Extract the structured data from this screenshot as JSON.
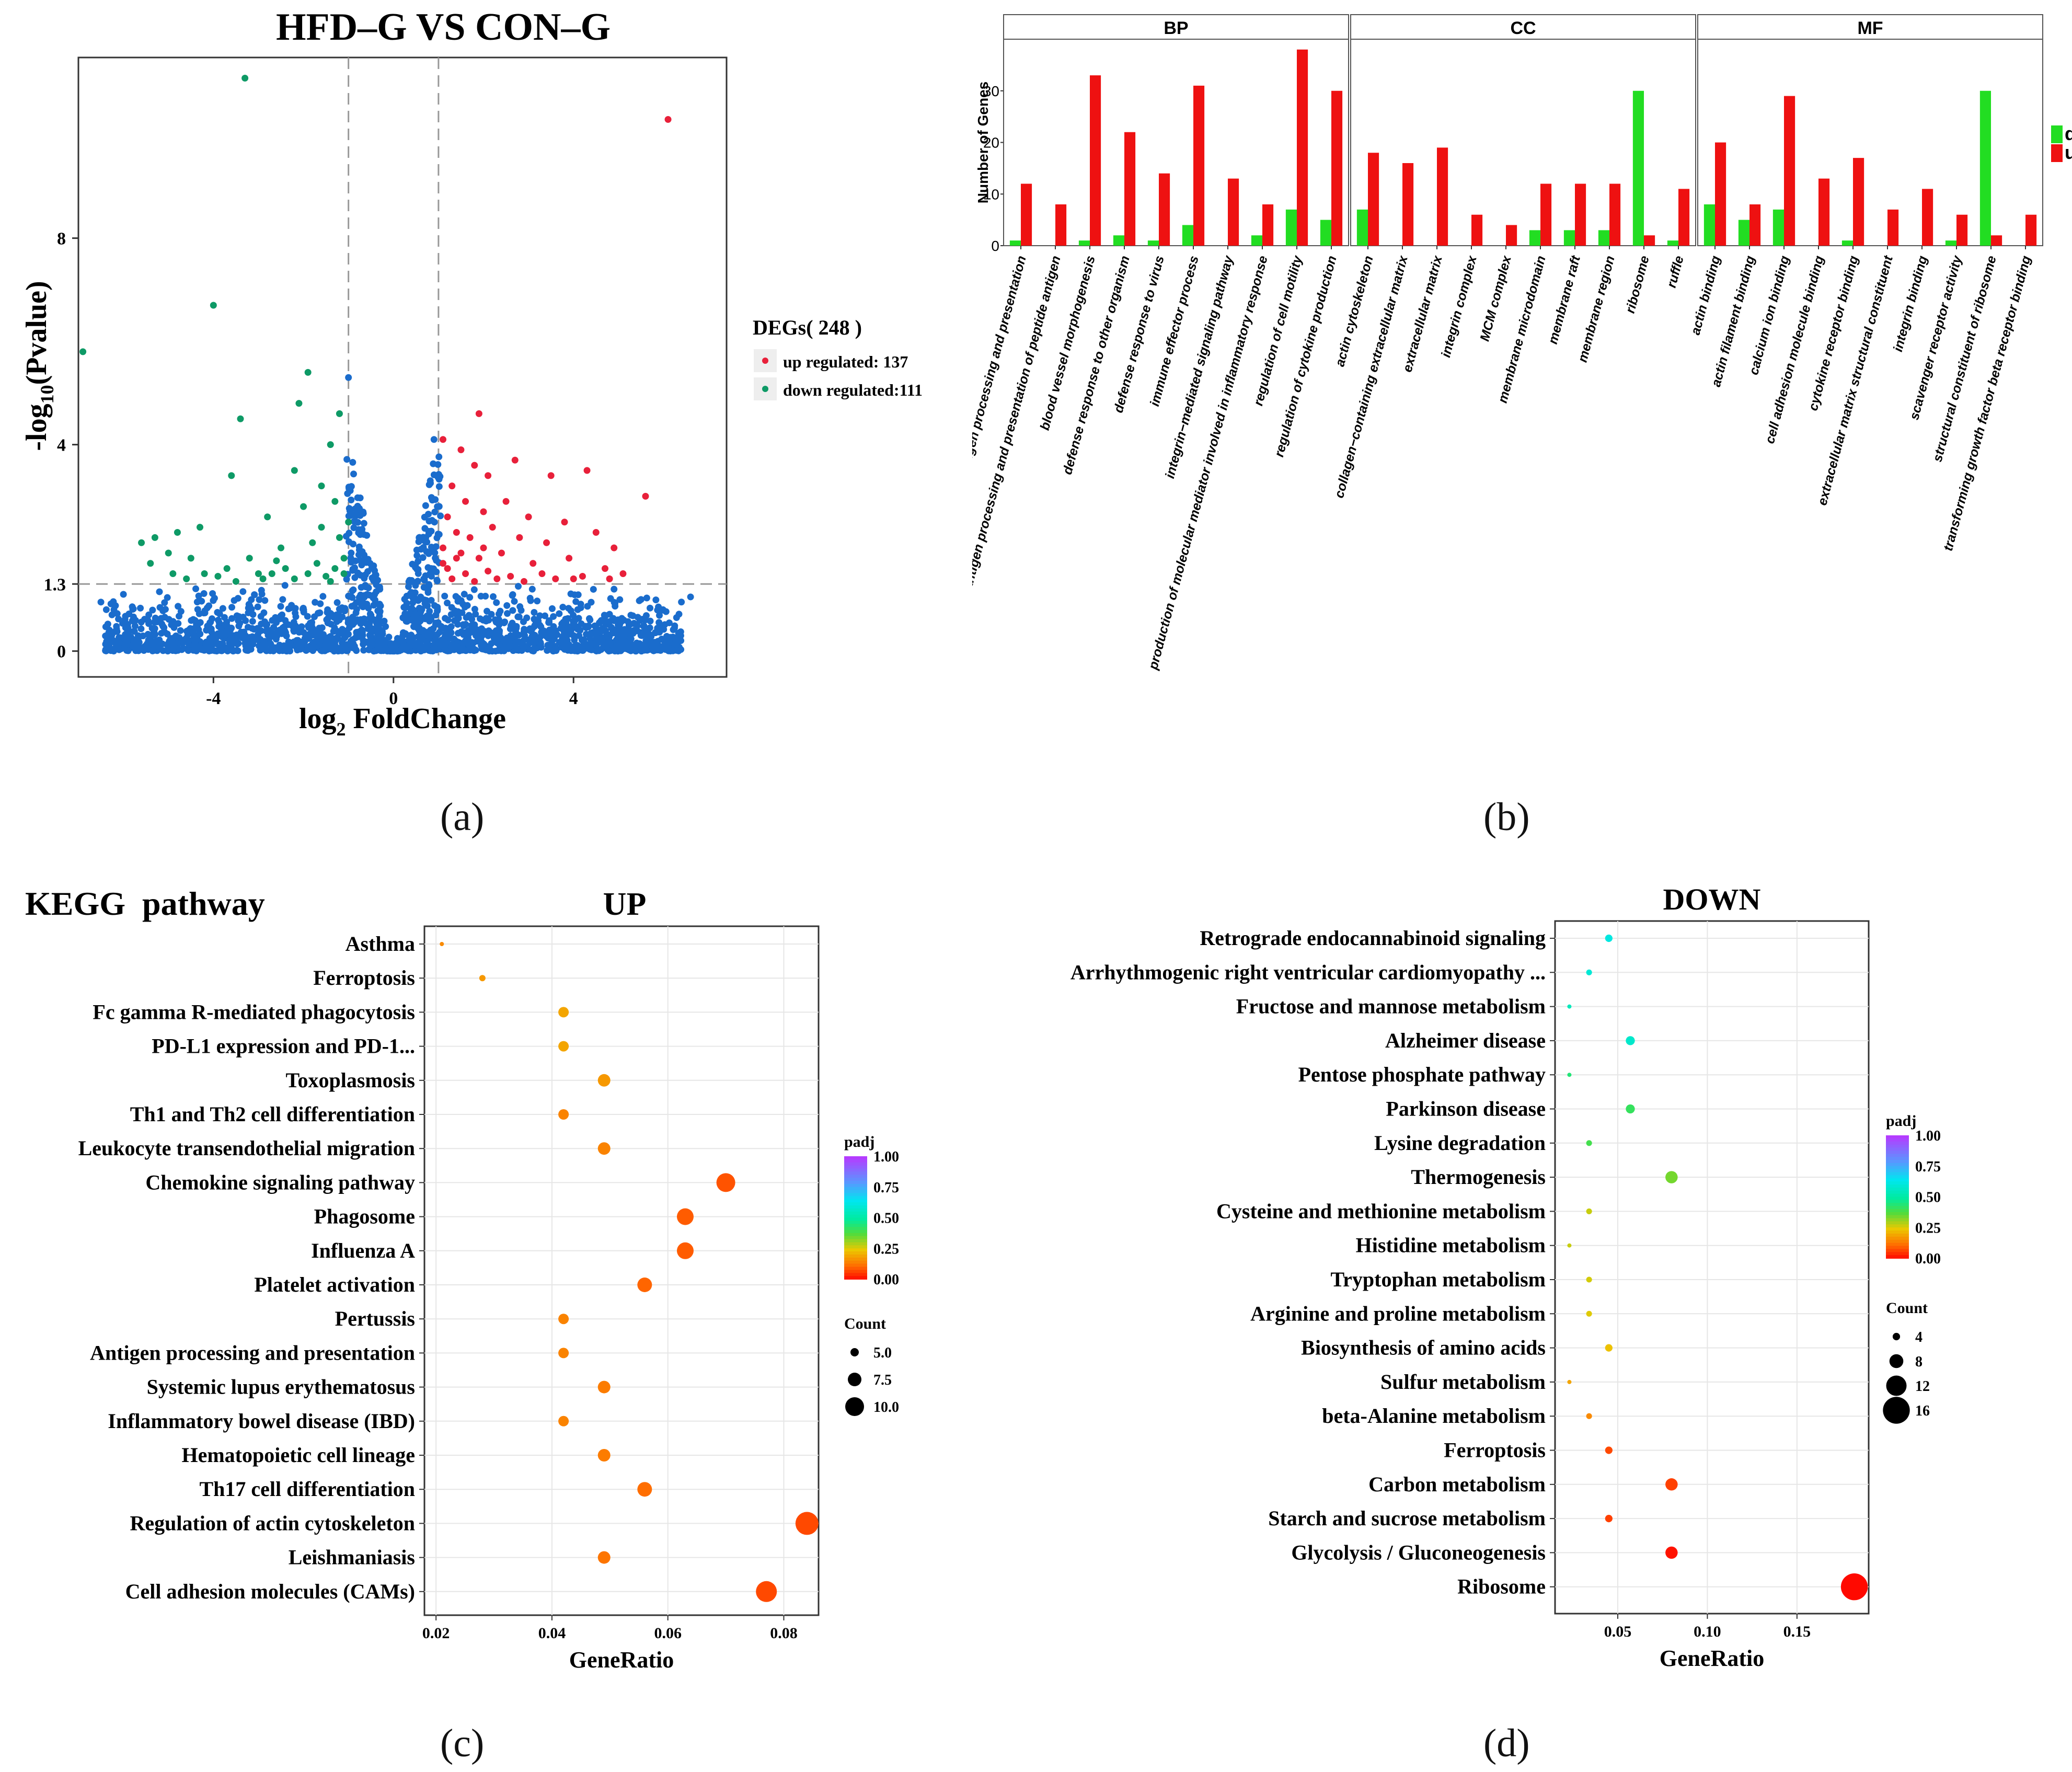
{
  "panel_labels": {
    "a": "(a)",
    "b": "(b)",
    "c": "(c)",
    "d": "(d)"
  },
  "chart_data": [
    {
      "type": "scatter",
      "id": "volcano",
      "title": "HFD–G VS CON–G",
      "xlabel": "log2 FoldChange",
      "xlabel_main": "log",
      "xlabel_sub": "2",
      "xlabel_rest": " FoldChange",
      "ylabel_main": "-log",
      "ylabel_sub": "10",
      "ylabel_rest": "(Pvalue)",
      "xlim": [
        -7,
        7.4
      ],
      "ylim": [
        -0.5,
        11.5
      ],
      "xticks": [
        "-4",
        "0",
        "4"
      ],
      "yticks": [
        "0",
        "1.3",
        "4",
        "8"
      ],
      "thresholds": {
        "x": [
          -1,
          1
        ],
        "y": 1.3
      },
      "legend": {
        "title": "DEGs( 248 )",
        "up": "up regulated: 137",
        "down": "down regulated:111",
        "position": "right"
      },
      "colors": {
        "up": "#e8203a",
        "down": "#0e9a66",
        "ns": "#1a6ccc"
      },
      "up_points": [
        [
          6.1,
          10.3
        ],
        [
          1.1,
          4.1
        ],
        [
          1.5,
          3.9
        ],
        [
          1.8,
          3.6
        ],
        [
          2.1,
          3.4
        ],
        [
          2.7,
          3.7
        ],
        [
          3.5,
          3.4
        ],
        [
          4.3,
          3.5
        ],
        [
          5.6,
          3.0
        ],
        [
          1.3,
          3.2
        ],
        [
          1.6,
          2.9
        ],
        [
          2.0,
          2.7
        ],
        [
          2.5,
          2.9
        ],
        [
          3.0,
          2.6
        ],
        [
          3.8,
          2.5
        ],
        [
          1.2,
          2.6
        ],
        [
          1.4,
          2.3
        ],
        [
          1.7,
          2.2
        ],
        [
          2.2,
          2.4
        ],
        [
          2.8,
          2.2
        ],
        [
          3.4,
          2.1
        ],
        [
          4.5,
          2.3
        ],
        [
          4.9,
          2.0
        ],
        [
          1.1,
          2.0
        ],
        [
          1.5,
          1.9
        ],
        [
          1.9,
          1.8
        ],
        [
          2.4,
          1.9
        ],
        [
          3.1,
          1.7
        ],
        [
          3.9,
          1.8
        ],
        [
          4.7,
          1.6
        ],
        [
          1.2,
          1.6
        ],
        [
          1.6,
          1.5
        ],
        [
          2.1,
          1.55
        ],
        [
          2.6,
          1.45
        ],
        [
          3.3,
          1.5
        ],
        [
          4.2,
          1.45
        ],
        [
          5.1,
          1.5
        ],
        [
          1.3,
          1.4
        ],
        [
          1.8,
          1.35
        ],
        [
          2.3,
          1.4
        ],
        [
          2.9,
          1.35
        ],
        [
          1.1,
          1.7
        ],
        [
          1.4,
          1.8
        ],
        [
          2.0,
          2.0
        ],
        [
          1.9,
          4.6
        ],
        [
          3.6,
          1.4
        ],
        [
          4.0,
          1.4
        ],
        [
          4.8,
          1.4
        ]
      ],
      "down_points": [
        [
          -4.0,
          6.7
        ],
        [
          -6.9,
          5.8
        ],
        [
          -3.3,
          11.1
        ],
        [
          -1.9,
          5.4
        ],
        [
          -2.1,
          4.8
        ],
        [
          -1.2,
          4.6
        ],
        [
          -3.4,
          4.5
        ],
        [
          -1.4,
          4.0
        ],
        [
          -3.6,
          3.4
        ],
        [
          -2.2,
          3.5
        ],
        [
          -1.6,
          3.2
        ],
        [
          -4.8,
          2.3
        ],
        [
          -5.3,
          2.2
        ],
        [
          -4.3,
          2.4
        ],
        [
          -2.8,
          2.6
        ],
        [
          -2.0,
          2.8
        ],
        [
          -1.3,
          2.9
        ],
        [
          -5.6,
          2.1
        ],
        [
          -5.0,
          1.9
        ],
        [
          -4.5,
          1.8
        ],
        [
          -3.2,
          1.8
        ],
        [
          -2.5,
          2.0
        ],
        [
          -1.8,
          2.1
        ],
        [
          -1.2,
          2.2
        ],
        [
          -4.9,
          1.5
        ],
        [
          -4.2,
          1.5
        ],
        [
          -3.7,
          1.6
        ],
        [
          -3.0,
          1.5
        ],
        [
          -2.4,
          1.6
        ],
        [
          -1.7,
          1.7
        ],
        [
          -1.1,
          1.8
        ],
        [
          -2.9,
          1.4
        ],
        [
          -2.2,
          1.4
        ],
        [
          -1.5,
          1.45
        ],
        [
          -4.6,
          1.4
        ],
        [
          -3.5,
          1.35
        ],
        [
          -1.9,
          1.5
        ],
        [
          -1.3,
          1.6
        ],
        [
          -2.6,
          1.75
        ],
        [
          -1.6,
          2.4
        ],
        [
          -1.1,
          1.5
        ],
        [
          -1.4,
          1.35
        ],
        [
          -2.7,
          1.5
        ],
        [
          -3.9,
          1.45
        ],
        [
          -5.4,
          1.7
        ],
        [
          -1.0,
          2.5
        ]
      ],
      "ns_extra_points": [
        [
          -6.5,
          0.95
        ],
        [
          6.6,
          1.05
        ],
        [
          -1.0,
          5.3
        ],
        [
          0.9,
          4.1
        ],
        [
          -6.0,
          1.1
        ],
        [
          4.9,
          1.2
        ],
        [
          -5.2,
          1.15
        ],
        [
          5.5,
          1.0
        ]
      ]
    },
    {
      "type": "bar",
      "id": "go",
      "ylabel": "Number of Genes",
      "ylim": [
        0,
        40
      ],
      "yticks": [
        "0",
        "10",
        "20",
        "30"
      ],
      "legend": {
        "down": "down",
        "up": "up",
        "position": "right"
      },
      "colors": {
        "down": "#22dd22",
        "up": "#ee1111"
      },
      "facets": [
        {
          "name": "BP",
          "categories": [
            "antigen processing and presentation",
            "antigen processing and presentation of peptide antigen",
            "blood vessel morphogenesis",
            "defense response to other organism",
            "defense response to virus",
            "immune effector process",
            "integrin−mediated signaling pathway",
            "production of molecular mediator involved in inflammatory response",
            "regulation of cell motility",
            "regulation of cytokine production"
          ],
          "down": [
            1,
            0,
            1,
            2,
            1,
            4,
            0,
            2,
            7,
            5
          ],
          "up": [
            12,
            8,
            33,
            22,
            14,
            31,
            13,
            8,
            38,
            30
          ]
        },
        {
          "name": "CC",
          "categories": [
            "actin cytoskeleton",
            "collagen−containing extracellular matrix",
            "extracellular matrix",
            "integrin complex",
            "MCM complex",
            "membrane microdomain",
            "membrane raft",
            "membrane region",
            "ribosome",
            "ruffle"
          ],
          "down": [
            7,
            0,
            0,
            0,
            0,
            3,
            3,
            3,
            30,
            1
          ],
          "up": [
            18,
            16,
            19,
            6,
            4,
            12,
            12,
            12,
            2,
            11
          ]
        },
        {
          "name": "MF",
          "categories": [
            "actin binding",
            "actin filament binding",
            "calcium ion binding",
            "cell adhesion molecule binding",
            "cytokine receptor binding",
            "extracellular matrix structural constituent",
            "integrin binding",
            "scavenger receptor activity",
            "structural constituent of ribosome",
            "transforming growth factor beta receptor binding"
          ],
          "down": [
            8,
            5,
            7,
            0,
            1,
            0,
            0,
            1,
            30,
            0
          ],
          "up": [
            20,
            8,
            29,
            13,
            17,
            7,
            11,
            6,
            2,
            6
          ]
        }
      ]
    },
    {
      "type": "scatter",
      "id": "kegg_up",
      "heading": "KEGG  pathway",
      "title": "UP",
      "xlabel": "GeneRatio",
      "xlim": [
        0.018,
        0.086
      ],
      "xticks": [
        0.02,
        0.04,
        0.06,
        0.08
      ],
      "xtick_labels": [
        "0.02",
        "0.04",
        "0.06",
        "0.08"
      ],
      "pathways": [
        "Asthma",
        "Ferroptosis",
        "Fc gamma R-mediated phagocytosis",
        "PD-L1 expression and PD-1...",
        "Toxoplasmosis",
        "Th1 and Th2 cell differentiation",
        "Leukocyte transendothelial migration",
        "Chemokine signaling pathway",
        "Phagosome",
        "Influenza A",
        "Platelet activation",
        "Pertussis",
        "Antigen processing and presentation",
        "Systemic lupus erythematosus",
        "Inflammatory bowel disease (IBD)",
        "Hematopoietic cell lineage",
        "Th17 cell differentiation",
        "Regulation of actin cytoskeleton",
        "Leishmaniasis",
        "Cell adhesion molecules (CAMs)"
      ],
      "gene_ratio": [
        0.021,
        0.028,
        0.042,
        0.042,
        0.049,
        0.042,
        0.049,
        0.07,
        0.063,
        0.063,
        0.056,
        0.042,
        0.042,
        0.049,
        0.042,
        0.049,
        0.056,
        0.084,
        0.049,
        0.077
      ],
      "count": [
        3,
        4,
        6,
        6,
        7,
        6,
        7,
        10,
        9,
        9,
        8,
        6,
        6,
        7,
        6,
        7,
        8,
        12,
        7,
        11
      ],
      "padj": [
        0.16,
        0.18,
        0.2,
        0.2,
        0.18,
        0.15,
        0.15,
        0.09,
        0.1,
        0.1,
        0.11,
        0.15,
        0.15,
        0.14,
        0.15,
        0.14,
        0.12,
        0.08,
        0.13,
        0.08
      ],
      "colorbar": {
        "title": "padj",
        "ticks": [
          "1.00",
          "0.75",
          "0.50",
          "0.25",
          "0.00"
        ]
      },
      "size_legend": {
        "title": "Count",
        "labels": [
          "5.0",
          "7.5",
          "10.0"
        ],
        "values": [
          5,
          7.5,
          10
        ]
      }
    },
    {
      "type": "scatter",
      "id": "kegg_down",
      "title": "DOWN",
      "xlabel": "GeneRatio",
      "xlim": [
        0.015,
        0.19
      ],
      "xticks": [
        0.05,
        0.1,
        0.15
      ],
      "xtick_labels": [
        "0.05",
        "0.10",
        "0.15"
      ],
      "pathways": [
        "Retrograde endocannabinoid signaling",
        "Arrhythmogenic right ventricular cardiomyopathy ...",
        "Fructose and mannose metabolism",
        "Alzheimer disease",
        "Pentose phosphate pathway",
        "Parkinson disease",
        "Lysine degradation",
        "Thermogenesis",
        "Cysteine and methionine metabolism",
        "Histidine metabolism",
        "Tryptophan metabolism",
        "Arginine and proline metabolism",
        "Biosynthesis of amino acids",
        "Sulfur metabolism",
        "beta-Alanine metabolism",
        "Ferroptosis",
        "Carbon metabolism",
        "Starch and sucrose metabolism",
        "Glycolysis / Gluconeogenesis",
        "Ribosome"
      ],
      "gene_ratio": [
        0.045,
        0.034,
        0.023,
        0.057,
        0.023,
        0.057,
        0.034,
        0.08,
        0.034,
        0.023,
        0.034,
        0.034,
        0.045,
        0.023,
        0.034,
        0.045,
        0.08,
        0.045,
        0.08,
        0.182
      ],
      "count": [
        4,
        3,
        2,
        5,
        2,
        5,
        3,
        7,
        3,
        2,
        3,
        3,
        4,
        2,
        3,
        4,
        7,
        4,
        7,
        16
      ],
      "padj": [
        0.62,
        0.6,
        0.55,
        0.58,
        0.45,
        0.42,
        0.4,
        0.35,
        0.28,
        0.28,
        0.27,
        0.26,
        0.24,
        0.2,
        0.16,
        0.08,
        0.07,
        0.07,
        0.02,
        0.01
      ],
      "colorbar": {
        "title": "padj",
        "ticks": [
          "1.00",
          "0.75",
          "0.50",
          "0.25",
          "0.00"
        ]
      },
      "size_legend": {
        "title": "Count",
        "labels": [
          "4",
          "8",
          "12",
          "16"
        ],
        "values": [
          4,
          8,
          12,
          16
        ]
      }
    }
  ]
}
